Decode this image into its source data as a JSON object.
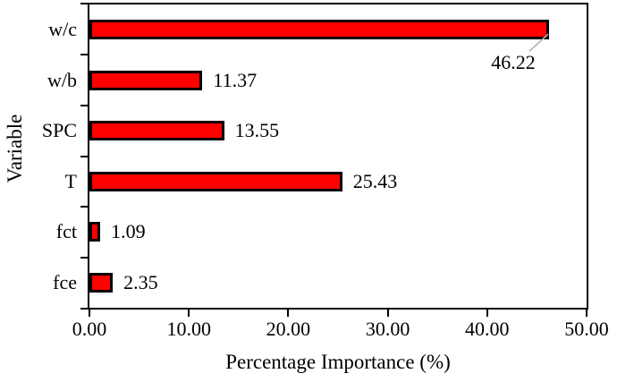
{
  "chart_data": {
    "type": "bar",
    "orientation": "horizontal",
    "title": "",
    "xlabel": "Percentage Importance (%)",
    "ylabel": "Variable",
    "categories": [
      "w/c",
      "w/b",
      "SPC",
      "T",
      "fct",
      "fce"
    ],
    "values": [
      46.22,
      11.37,
      13.55,
      25.43,
      1.09,
      2.35
    ],
    "value_labels": [
      "46.22",
      "11.37",
      "13.55",
      "25.43",
      "1.09",
      "2.35"
    ],
    "xlim": [
      0,
      50
    ],
    "x_ticks": [
      0,
      10,
      20,
      30,
      40,
      50
    ],
    "x_tick_labels": [
      "0.00",
      "10.00",
      "20.00",
      "30.00",
      "40.00",
      "50.00"
    ],
    "grid": false,
    "legend": null,
    "bar_fill_color": "#ff0000",
    "bar_border_color": "#000000",
    "leader_line_color": "#b3b3b3",
    "axis_color": "#000000",
    "background_color": "#ffffff"
  }
}
